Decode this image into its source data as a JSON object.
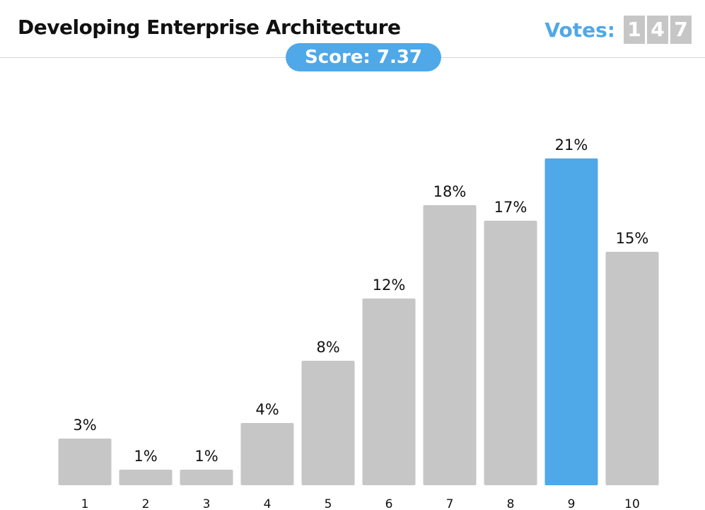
{
  "header": {
    "title": "Developing Enterprise Architecture",
    "votes_label": "Votes:",
    "votes_digits": [
      "1",
      "4",
      "7"
    ],
    "score_text": "Score: 7.37"
  },
  "colors": {
    "accent": "#4fa8e8",
    "bar": "#c6c6c6",
    "digit_box": "#c6c6c6"
  },
  "chart_data": {
    "type": "bar",
    "categories": [
      "1",
      "2",
      "3",
      "4",
      "5",
      "6",
      "7",
      "8",
      "9",
      "10"
    ],
    "values": [
      3,
      1,
      1,
      4,
      8,
      12,
      18,
      17,
      21,
      15
    ],
    "labels": [
      "3%",
      "1%",
      "1%",
      "4%",
      "8%",
      "12%",
      "18%",
      "17%",
      "21%",
      "15%"
    ],
    "highlight_index": 8,
    "unit": "%",
    "title": "",
    "xlabel": "",
    "ylabel": "",
    "ylim": [
      0,
      21
    ],
    "grid": false,
    "legend": "none"
  }
}
